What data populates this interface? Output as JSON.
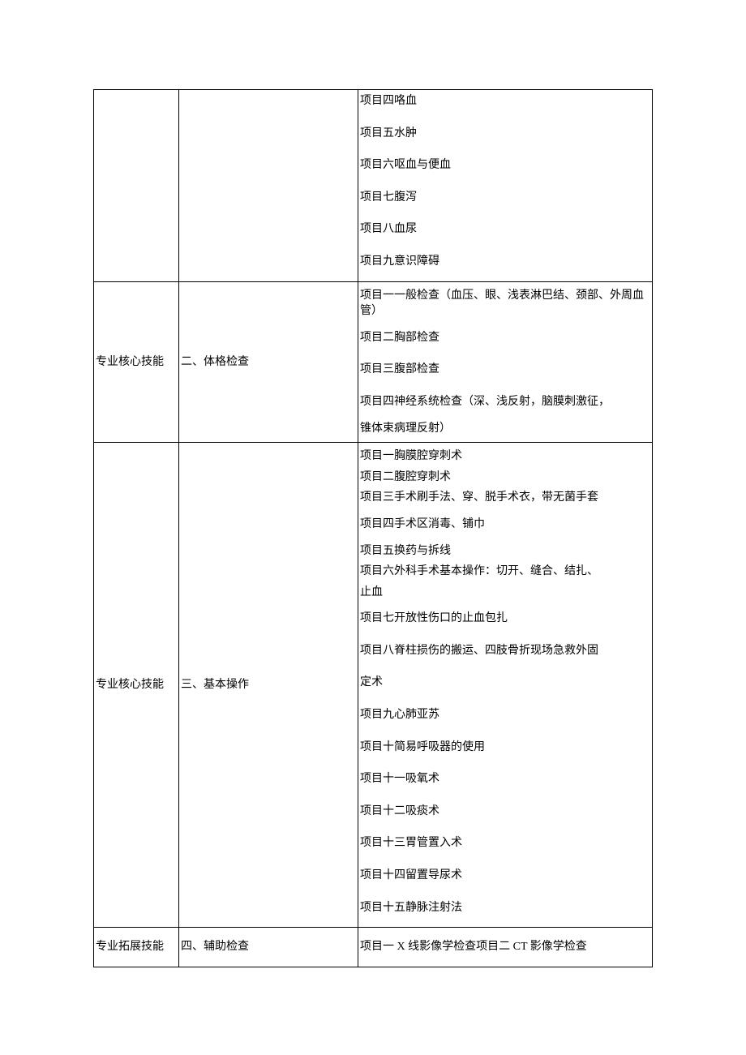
{
  "rows": [
    {
      "col1": "",
      "col2": "",
      "items": [
        {
          "text": "项目四咯血",
          "cls": "item-line item-line-first"
        },
        {
          "text": "项目五水肿",
          "cls": "item-line"
        },
        {
          "text": "项目六呕血与便血",
          "cls": "item-line"
        },
        {
          "text": "项目七腹泻",
          "cls": "item-line"
        },
        {
          "text": "项目八血尿",
          "cls": "item-line"
        },
        {
          "text": "项目九意识障碍",
          "cls": "item-line"
        }
      ]
    },
    {
      "col1": "专业核心技能",
      "col2": "二、体格检查",
      "items": [
        {
          "text": "项目一一般检查（血压、眼、浅表淋巴结、颈部、外周血管）",
          "cls": "item-line-tight"
        },
        {
          "text": "项目二胸部检查",
          "cls": "item-line"
        },
        {
          "text": "项目三腹部检查",
          "cls": "item-line"
        },
        {
          "text": "项目四神经系统检查（深、浅反射，脑膜刺激征，",
          "cls": "item-line"
        },
        {
          "text": "锥体束病理反射）",
          "cls": "item-line-tight"
        }
      ]
    },
    {
      "col1": "专业核心技能",
      "col2": "三、基本操作",
      "items": [
        {
          "text": "项目一胸膜腔穿刺术",
          "cls": "item-line-tight"
        },
        {
          "text": "项目二腹腔穿刺术",
          "cls": "item-line-tight"
        },
        {
          "text": "项目三手术刷手法、穿、脱手术衣，带无菌手套",
          "cls": "item-line-tight"
        },
        {
          "text": "项目四手术区消毒、铺巾",
          "cls": "item-line"
        },
        {
          "text": "项目五换药与拆线",
          "cls": "item-line-tight"
        },
        {
          "text": "项目六外科手术基本操作：切开、缝合、结扎、",
          "cls": "item-line-tight"
        },
        {
          "text": "止血",
          "cls": "item-line-tight"
        },
        {
          "text": "项目七开放性伤口的止血包扎",
          "cls": "item-line"
        },
        {
          "text": "项目八脊柱损伤的搬运、四肢骨折现场急救外固",
          "cls": "item-line"
        },
        {
          "text": "定术",
          "cls": "item-line"
        },
        {
          "text": "项目九心肺亚苏",
          "cls": "item-line"
        },
        {
          "text": "项目十简易呼吸器的使用",
          "cls": "item-line"
        },
        {
          "text": "项目十一吸氧术",
          "cls": "item-line"
        },
        {
          "text": "项目十二吸痰术",
          "cls": "item-line"
        },
        {
          "text": "项目十三胃管置入术",
          "cls": "item-line"
        },
        {
          "text": "项目十四留置导尿术",
          "cls": "item-line"
        },
        {
          "text": "项目十五静脉注射法",
          "cls": "item-line"
        }
      ]
    },
    {
      "col1": "专业拓展技能",
      "col2": "四、辅助检查",
      "items": [
        {
          "text": "项目一 X 线影像学检查项目二 CT 影像学检查",
          "cls": "item-line"
        }
      ]
    }
  ]
}
